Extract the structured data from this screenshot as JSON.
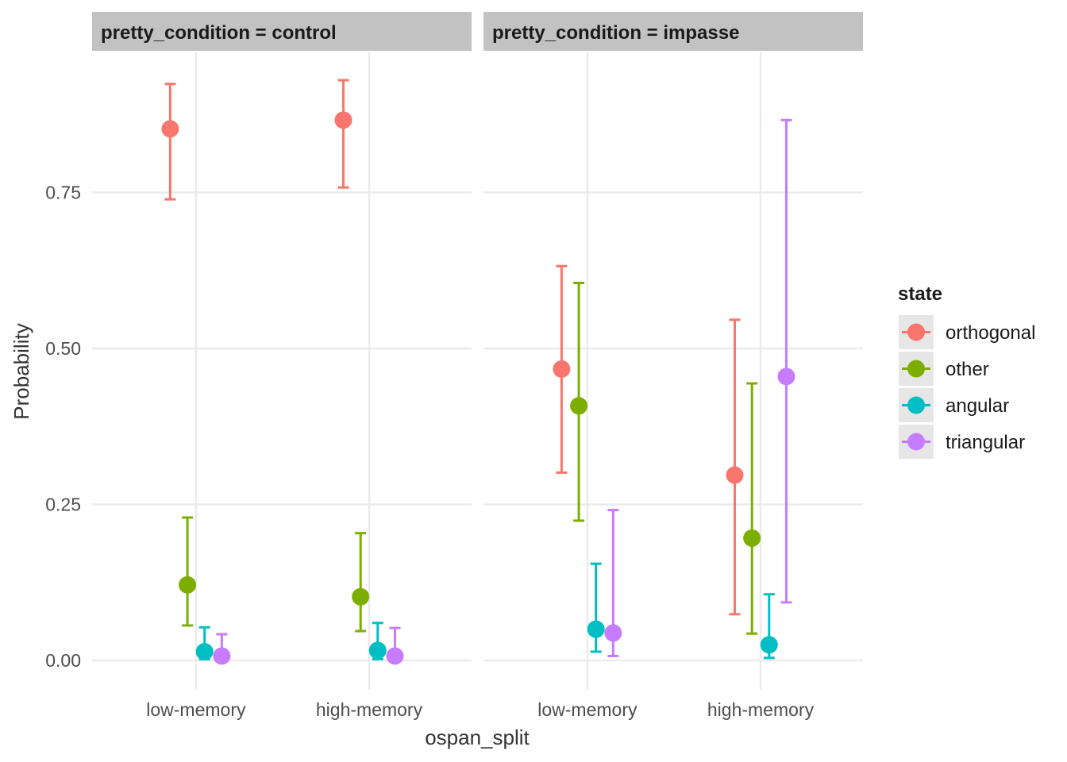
{
  "chart_data": {
    "type": "errorbar",
    "facet_var": "pretty_condition",
    "panels": [
      {
        "key": "control",
        "strip_label": "pretty_condition = control"
      },
      {
        "key": "impasse",
        "strip_label": "pretty_condition = impasse"
      }
    ],
    "categories": [
      "low-memory",
      "high-memory"
    ],
    "xlabel": "ospan_split",
    "ylabel": "Probability",
    "yticks": [
      "0.00",
      "0.25",
      "0.50",
      "0.75"
    ],
    "ylim": [
      -0.045,
      0.975
    ],
    "grid": true,
    "legend_title": "state",
    "legend_position": "right",
    "series": [
      {
        "name": "orthogonal",
        "color": "#F8766D",
        "points": {
          "control": [
            {
              "category": "low-memory",
              "estimate": 0.852,
              "lower": 0.739,
              "upper": 0.924
            },
            {
              "category": "high-memory",
              "estimate": 0.866,
              "lower": 0.758,
              "upper": 0.93
            }
          ],
          "impasse": [
            {
              "category": "low-memory",
              "estimate": 0.467,
              "lower": 0.301,
              "upper": 0.632
            },
            {
              "category": "high-memory",
              "estimate": 0.297,
              "lower": 0.074,
              "upper": 0.546
            }
          ]
        }
      },
      {
        "name": "other",
        "color": "#7CAE00",
        "points": {
          "control": [
            {
              "category": "low-memory",
              "estimate": 0.121,
              "lower": 0.056,
              "upper": 0.229
            },
            {
              "category": "high-memory",
              "estimate": 0.102,
              "lower": 0.047,
              "upper": 0.204
            }
          ],
          "impasse": [
            {
              "category": "low-memory",
              "estimate": 0.408,
              "lower": 0.224,
              "upper": 0.605
            },
            {
              "category": "high-memory",
              "estimate": 0.196,
              "lower": 0.043,
              "upper": 0.444
            }
          ]
        }
      },
      {
        "name": "angular",
        "color": "#00BFC4",
        "points": {
          "control": [
            {
              "category": "low-memory",
              "estimate": 0.014,
              "lower": 0.002,
              "upper": 0.053
            },
            {
              "category": "high-memory",
              "estimate": 0.016,
              "lower": 0.002,
              "upper": 0.06
            }
          ],
          "impasse": [
            {
              "category": "low-memory",
              "estimate": 0.05,
              "lower": 0.014,
              "upper": 0.155
            },
            {
              "category": "high-memory",
              "estimate": 0.025,
              "lower": 0.004,
              "upper": 0.106
            }
          ]
        }
      },
      {
        "name": "triangular",
        "color": "#C77CFF",
        "points": {
          "control": [
            {
              "category": "low-memory",
              "estimate": 0.007,
              "lower": 0.001,
              "upper": 0.042
            },
            {
              "category": "high-memory",
              "estimate": 0.007,
              "lower": 0.001,
              "upper": 0.052
            }
          ],
          "impasse": [
            {
              "category": "low-memory",
              "estimate": 0.044,
              "lower": 0.007,
              "upper": 0.241
            },
            {
              "category": "high-memory",
              "estimate": 0.455,
              "lower": 0.093,
              "upper": 0.866
            }
          ]
        }
      }
    ]
  }
}
